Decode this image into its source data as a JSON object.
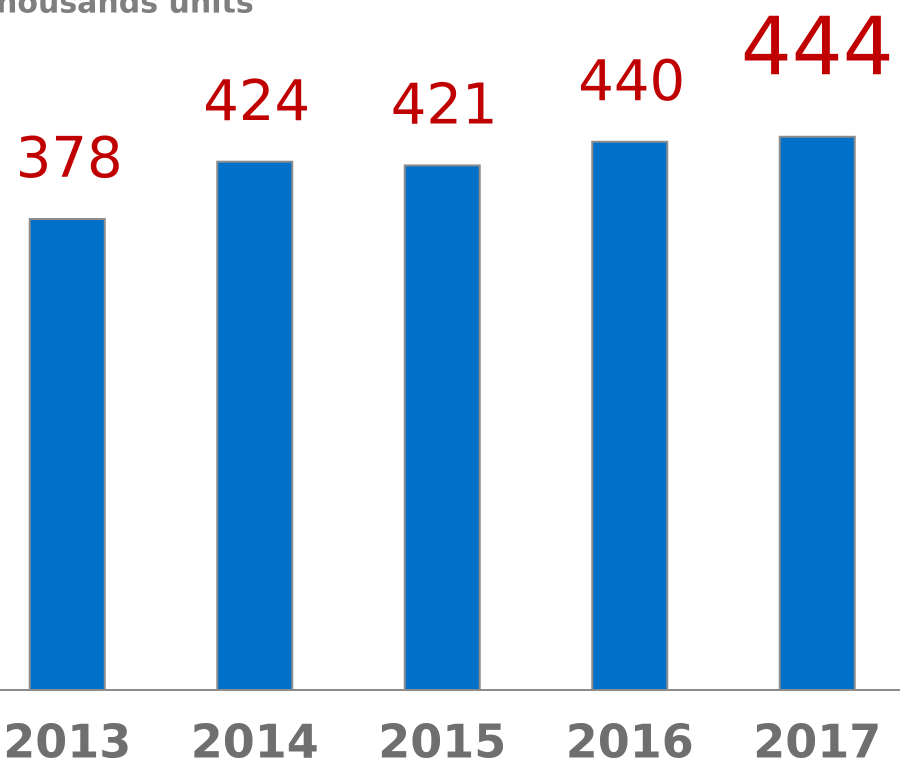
{
  "chart_data": {
    "type": "bar",
    "title": "housands units",
    "categories": [
      "2013",
      "2014",
      "2015",
      "2016",
      "2017"
    ],
    "values": [
      378,
      424,
      421,
      440,
      444
    ],
    "color": "#0070c8",
    "label_color": "#c00000",
    "ylim": [
      0,
      500
    ]
  }
}
